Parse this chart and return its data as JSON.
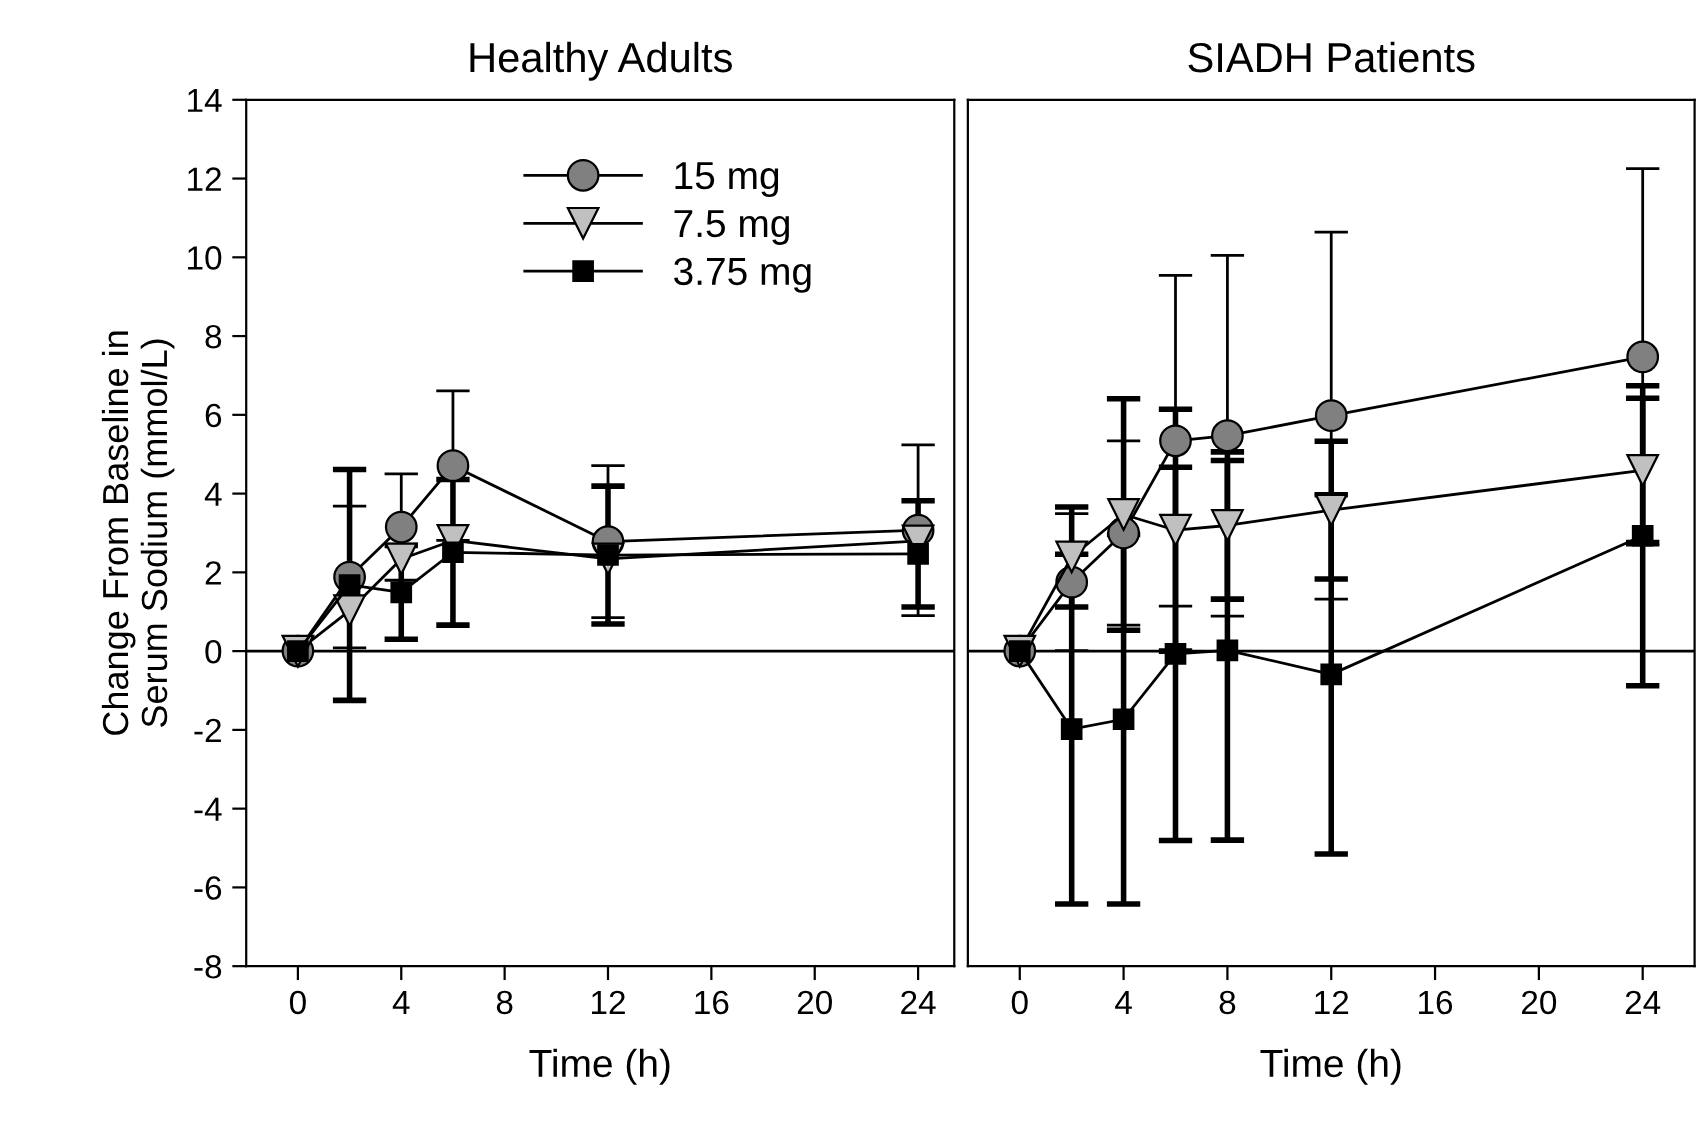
{
  "chart_data": [
    {
      "type": "line",
      "title": "Healthy Adults",
      "xlabel": "Time (h)",
      "ylabel": "Change From Baseline in\nSerum Sodium (mmol/L)",
      "xlim": [
        -2,
        25.4
      ],
      "ylim": [
        -8,
        14
      ],
      "xticks": [
        0,
        4,
        8,
        12,
        16,
        20,
        24
      ],
      "yticks": [
        -8,
        -6,
        -4,
        -2,
        0,
        2,
        4,
        6,
        8,
        10,
        12,
        14
      ],
      "grid": false,
      "legend": "top right",
      "ref_lines": [
        {
          "axis": "y",
          "value": 0,
          "color": "#000000"
        }
      ],
      "series": [
        {
          "name": "15 mg",
          "color": "#808080",
          "marker": "circle",
          "x": [
            0,
            2,
            4,
            6,
            12,
            24
          ],
          "values": [
            0,
            1.88,
            3.15,
            4.71,
            2.78,
            3.07
          ],
          "errors": [
            null,
            1.8,
            1.35,
            1.9,
            1.93,
            2.17
          ]
        },
        {
          "name": "7.5 mg",
          "color": "#c0c0c0",
          "marker": "triangle",
          "x": [
            0,
            2,
            4,
            6,
            12,
            24
          ],
          "values": [
            0,
            1.03,
            2.34,
            2.81,
            2.34,
            2.8
          ]
        },
        {
          "name": "3.75 mg",
          "color": "#000000",
          "marker": "square",
          "x": [
            0,
            2,
            4,
            6,
            12,
            24
          ],
          "values": [
            0,
            1.68,
            1.49,
            2.51,
            2.44,
            2.47
          ],
          "errors": [
            null,
            2.93,
            1.19,
            1.85,
            1.75,
            1.35
          ]
        }
      ]
    },
    {
      "type": "line",
      "title": "SIADH Patients",
      "xlabel": "Time (h)",
      "xlim": [
        -2,
        26
      ],
      "ylim": [
        -8,
        14
      ],
      "xticks": [
        0,
        4,
        8,
        12,
        16,
        20,
        24
      ],
      "tick_labels": "x",
      "grid": false,
      "ref_lines": [
        {
          "axis": "y",
          "value": 0,
          "color": "#000000"
        }
      ],
      "series": [
        {
          "color": "#808080",
          "marker": "circle",
          "x": [
            0,
            2,
            4,
            6,
            8,
            12,
            24
          ],
          "values": [
            0,
            1.75,
            3.0,
            5.34,
            5.47,
            5.98,
            7.47
          ],
          "errors": [
            null,
            1.74,
            2.34,
            4.2,
            4.58,
            4.66,
            4.78
          ]
        },
        {
          "color": "#c0c0c0",
          "marker": "triangle",
          "x": [
            0,
            2,
            4,
            6,
            8,
            12,
            24
          ],
          "values": [
            0,
            2.39,
            3.47,
            3.07,
            3.19,
            3.58,
            4.59
          ],
          "errors": [
            null,
            1.27,
            2.94,
            3.07,
            1.87,
            1.75,
            1.83
          ]
        },
        {
          "color": "#000000",
          "marker": "square",
          "x": [
            0,
            2,
            4,
            6,
            8,
            12,
            24
          ],
          "values": [
            0,
            -1.98,
            -1.73,
            -0.07,
            0.02,
            -0.59,
            2.93
          ],
          "errors": [
            null,
            4.44,
            4.69,
            4.74,
            4.82,
            4.56,
            3.81
          ]
        }
      ]
    }
  ]
}
